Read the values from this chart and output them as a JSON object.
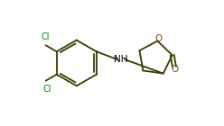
{
  "bg_color": "#ffffff",
  "bond_color": "#3a3a00",
  "cl_color": "#008000",
  "nh_color": "#000000",
  "o_color": "#8b4513",
  "figsize": [
    2.48,
    1.4
  ],
  "dpi": 100,
  "bond_lw": 1.3,
  "font_size": 7.0,
  "xlim": [
    0.0,
    1.0
  ],
  "ylim": [
    0.05,
    0.95
  ]
}
